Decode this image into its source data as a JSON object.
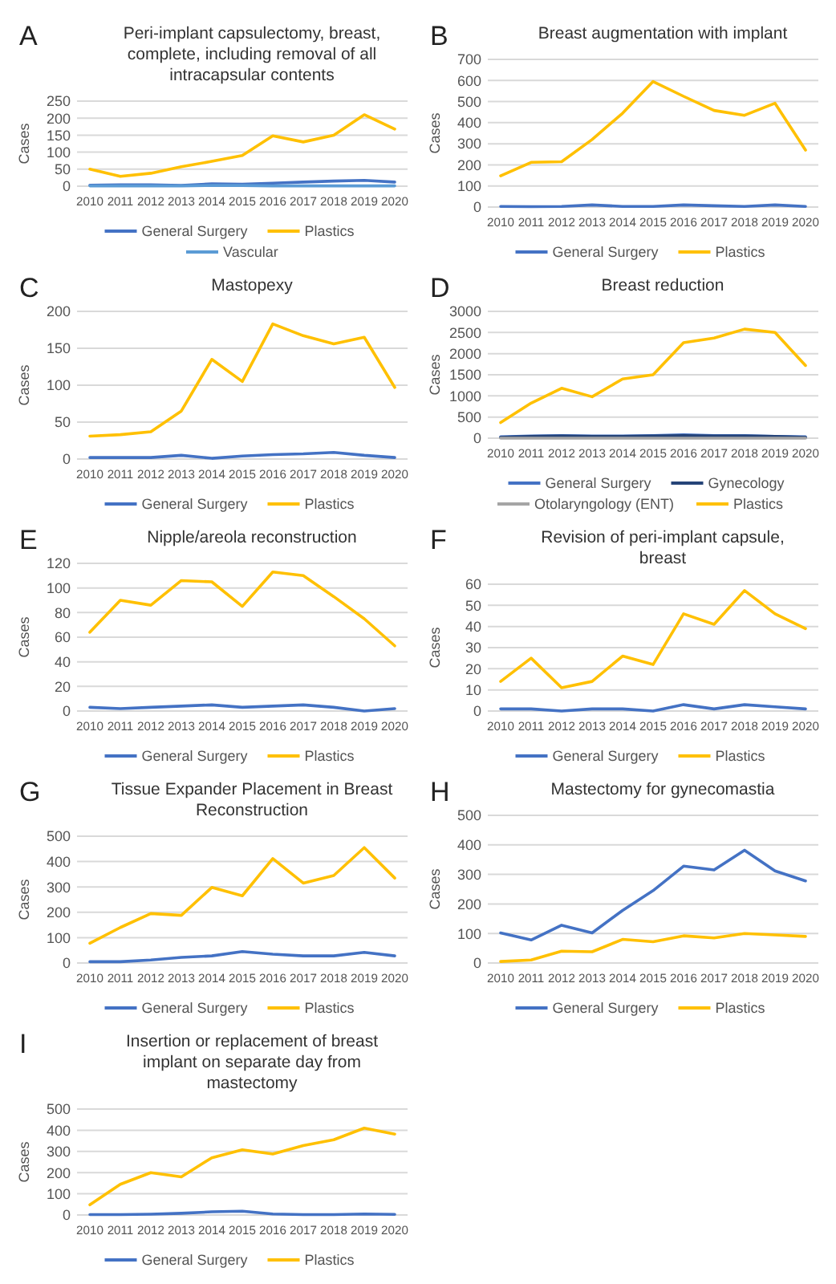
{
  "chart_data": [
    {
      "type": "line",
      "annotations": [
        "A"
      ],
      "title": "Peri-implant capsulectomy, breast, complete, including removal of all intracapsular contents",
      "ylabel": "Cases",
      "categories": [
        "2010",
        "2011",
        "2012",
        "2013",
        "2014",
        "2015",
        "2016",
        "2017",
        "2018",
        "2019",
        "2020"
      ],
      "ylim": [
        0,
        250
      ],
      "yticks": [
        0,
        50,
        100,
        150,
        200,
        250
      ],
      "grid": "y",
      "legend": "bottom",
      "series": [
        {
          "name": "General Surgery",
          "color": "#4472c4",
          "values": [
            3,
            4,
            4,
            2,
            7,
            6,
            9,
            12,
            15,
            17,
            12
          ]
        },
        {
          "name": "Plastics",
          "color": "#ffc000",
          "values": [
            50,
            29,
            38,
            57,
            73,
            90,
            148,
            130,
            150,
            210,
            168
          ]
        },
        {
          "name": "Vascular",
          "color": "#5b9bd5",
          "values": [
            1,
            1,
            1,
            1,
            2,
            2,
            1,
            1,
            1,
            1,
            1
          ]
        }
      ]
    },
    {
      "type": "line",
      "annotations": [
        "B"
      ],
      "title": "Breast augmentation with implant",
      "ylabel": "Cases",
      "categories": [
        "2010",
        "2011",
        "2012",
        "2013",
        "2014",
        "2015",
        "2016",
        "2017",
        "2018",
        "2019",
        "2020"
      ],
      "ylim": [
        0,
        700
      ],
      "yticks": [
        0,
        100,
        200,
        300,
        400,
        500,
        600,
        700
      ],
      "grid": "y",
      "legend": "bottom",
      "series": [
        {
          "name": "General Surgery",
          "color": "#4472c4",
          "values": [
            3,
            2,
            3,
            10,
            3,
            3,
            10,
            6,
            3,
            10,
            3
          ]
        },
        {
          "name": "Plastics",
          "color": "#ffc000",
          "values": [
            148,
            212,
            215,
            320,
            445,
            595,
            525,
            458,
            435,
            492,
            270
          ]
        }
      ]
    },
    {
      "type": "line",
      "annotations": [
        "C"
      ],
      "title": "Mastopexy",
      "ylabel": "Cases",
      "categories": [
        "2010",
        "2011",
        "2012",
        "2013",
        "2014",
        "2015",
        "2016",
        "2017",
        "2018",
        "2019",
        "2020"
      ],
      "ylim": [
        0,
        200
      ],
      "yticks": [
        0,
        50,
        100,
        150,
        200
      ],
      "grid": "y",
      "legend": "bottom",
      "series": [
        {
          "name": "General Surgery",
          "color": "#4472c4",
          "values": [
            2,
            2,
            2,
            5,
            1,
            4,
            6,
            7,
            9,
            5,
            2
          ]
        },
        {
          "name": "Plastics",
          "color": "#ffc000",
          "values": [
            31,
            33,
            37,
            65,
            135,
            105,
            183,
            167,
            156,
            165,
            97
          ]
        }
      ]
    },
    {
      "type": "line",
      "annotations": [
        "D"
      ],
      "title": "Breast reduction",
      "ylabel": "Cases",
      "categories": [
        "2010",
        "2011",
        "2012",
        "2013",
        "2014",
        "2015",
        "2016",
        "2017",
        "2018",
        "2019",
        "2020"
      ],
      "ylim": [
        0,
        3000
      ],
      "yticks": [
        0,
        500,
        1000,
        1500,
        2000,
        2500,
        3000
      ],
      "grid": "y",
      "legend": "bottom",
      "series": [
        {
          "name": "General Surgery",
          "color": "#4472c4",
          "values": [
            30,
            50,
            60,
            50,
            50,
            60,
            80,
            60,
            60,
            40,
            30
          ]
        },
        {
          "name": "Gynecology",
          "color": "#264478",
          "values": [
            20,
            40,
            50,
            40,
            40,
            50,
            60,
            50,
            50,
            40,
            20
          ]
        },
        {
          "name": "Otolaryngology (ENT)",
          "color": "#a5a5a5",
          "values": [
            0,
            0,
            0,
            0,
            0,
            0,
            0,
            0,
            0,
            0,
            0
          ]
        },
        {
          "name": "Plastics",
          "color": "#ffc000",
          "values": [
            370,
            830,
            1180,
            980,
            1400,
            1500,
            2260,
            2370,
            2580,
            2500,
            1720
          ]
        }
      ]
    },
    {
      "type": "line",
      "annotations": [
        "E"
      ],
      "title": "Nipple/areola reconstruction",
      "ylabel": "Cases",
      "categories": [
        "2010",
        "2011",
        "2012",
        "2013",
        "2014",
        "2015",
        "2016",
        "2017",
        "2018",
        "2019",
        "2020"
      ],
      "ylim": [
        0,
        120
      ],
      "yticks": [
        0,
        20,
        40,
        60,
        80,
        100,
        120
      ],
      "grid": "y",
      "legend": "bottom",
      "series": [
        {
          "name": "General Surgery",
          "color": "#4472c4",
          "values": [
            3,
            2,
            3,
            4,
            5,
            3,
            4,
            5,
            3,
            0,
            2
          ]
        },
        {
          "name": "Plastics",
          "color": "#ffc000",
          "values": [
            64,
            90,
            86,
            106,
            105,
            85,
            113,
            110,
            93,
            75,
            53
          ]
        }
      ]
    },
    {
      "type": "line",
      "annotations": [
        "F"
      ],
      "title": "Revision of peri-implant capsule, breast",
      "ylabel": "Cases",
      "categories": [
        "2010",
        "2011",
        "2012",
        "2013",
        "2014",
        "2015",
        "2016",
        "2017",
        "2018",
        "2019",
        "2020"
      ],
      "ylim": [
        0,
        60
      ],
      "yticks": [
        0,
        10,
        20,
        30,
        40,
        50,
        60
      ],
      "grid": "y",
      "legend": "bottom",
      "series": [
        {
          "name": "General Surgery",
          "color": "#4472c4",
          "values": [
            1,
            1,
            0,
            1,
            1,
            0,
            3,
            1,
            3,
            2,
            1
          ]
        },
        {
          "name": "Plastics",
          "color": "#ffc000",
          "values": [
            14,
            25,
            11,
            14,
            26,
            22,
            46,
            41,
            57,
            46,
            39
          ]
        }
      ]
    },
    {
      "type": "line",
      "annotations": [
        "G"
      ],
      "title": "Tissue Expander Placement in Breast Reconstruction",
      "ylabel": "Cases",
      "categories": [
        "2010",
        "2011",
        "2012",
        "2013",
        "2014",
        "2015",
        "2016",
        "2017",
        "2018",
        "2019",
        "2020"
      ],
      "ylim": [
        0,
        500
      ],
      "yticks": [
        0,
        100,
        200,
        300,
        400,
        500
      ],
      "grid": "y",
      "legend": "bottom",
      "series": [
        {
          "name": "General Surgery",
          "color": "#4472c4",
          "values": [
            5,
            5,
            12,
            22,
            28,
            45,
            35,
            28,
            28,
            42,
            28
          ]
        },
        {
          "name": "Plastics",
          "color": "#ffc000",
          "values": [
            78,
            140,
            195,
            188,
            298,
            265,
            412,
            315,
            345,
            455,
            335
          ]
        }
      ]
    },
    {
      "type": "line",
      "annotations": [
        "H"
      ],
      "title": "Mastectomy for gynecomastia",
      "ylabel": "Cases",
      "categories": [
        "2010",
        "2011",
        "2012",
        "2013",
        "2014",
        "2015",
        "2016",
        "2017",
        "2018",
        "2019",
        "2020"
      ],
      "ylim": [
        0,
        500
      ],
      "yticks": [
        0,
        100,
        200,
        300,
        400,
        500
      ],
      "grid": "y",
      "legend": "bottom",
      "series": [
        {
          "name": "General Surgery",
          "color": "#4472c4",
          "values": [
            102,
            78,
            128,
            102,
            178,
            245,
            328,
            315,
            382,
            312,
            278
          ]
        },
        {
          "name": "Plastics",
          "color": "#ffc000",
          "values": [
            5,
            10,
            40,
            38,
            80,
            72,
            92,
            85,
            100,
            95,
            90
          ]
        }
      ]
    },
    {
      "type": "line",
      "annotations": [
        "I"
      ],
      "title": "Insertion or replacement of breast implant on separate day from mastectomy",
      "ylabel": "Cases",
      "categories": [
        "2010",
        "2011",
        "2012",
        "2013",
        "2014",
        "2015",
        "2016",
        "2017",
        "2018",
        "2019",
        "2020"
      ],
      "ylim": [
        0,
        500
      ],
      "yticks": [
        0,
        100,
        200,
        300,
        400,
        500
      ],
      "grid": "y",
      "legend": "bottom",
      "series": [
        {
          "name": "General Surgery",
          "color": "#4472c4",
          "values": [
            2,
            2,
            4,
            8,
            15,
            18,
            5,
            2,
            2,
            5,
            3
          ]
        },
        {
          "name": "Plastics",
          "color": "#ffc000",
          "values": [
            48,
            145,
            200,
            180,
            270,
            308,
            288,
            328,
            355,
            410,
            382
          ]
        }
      ]
    }
  ]
}
